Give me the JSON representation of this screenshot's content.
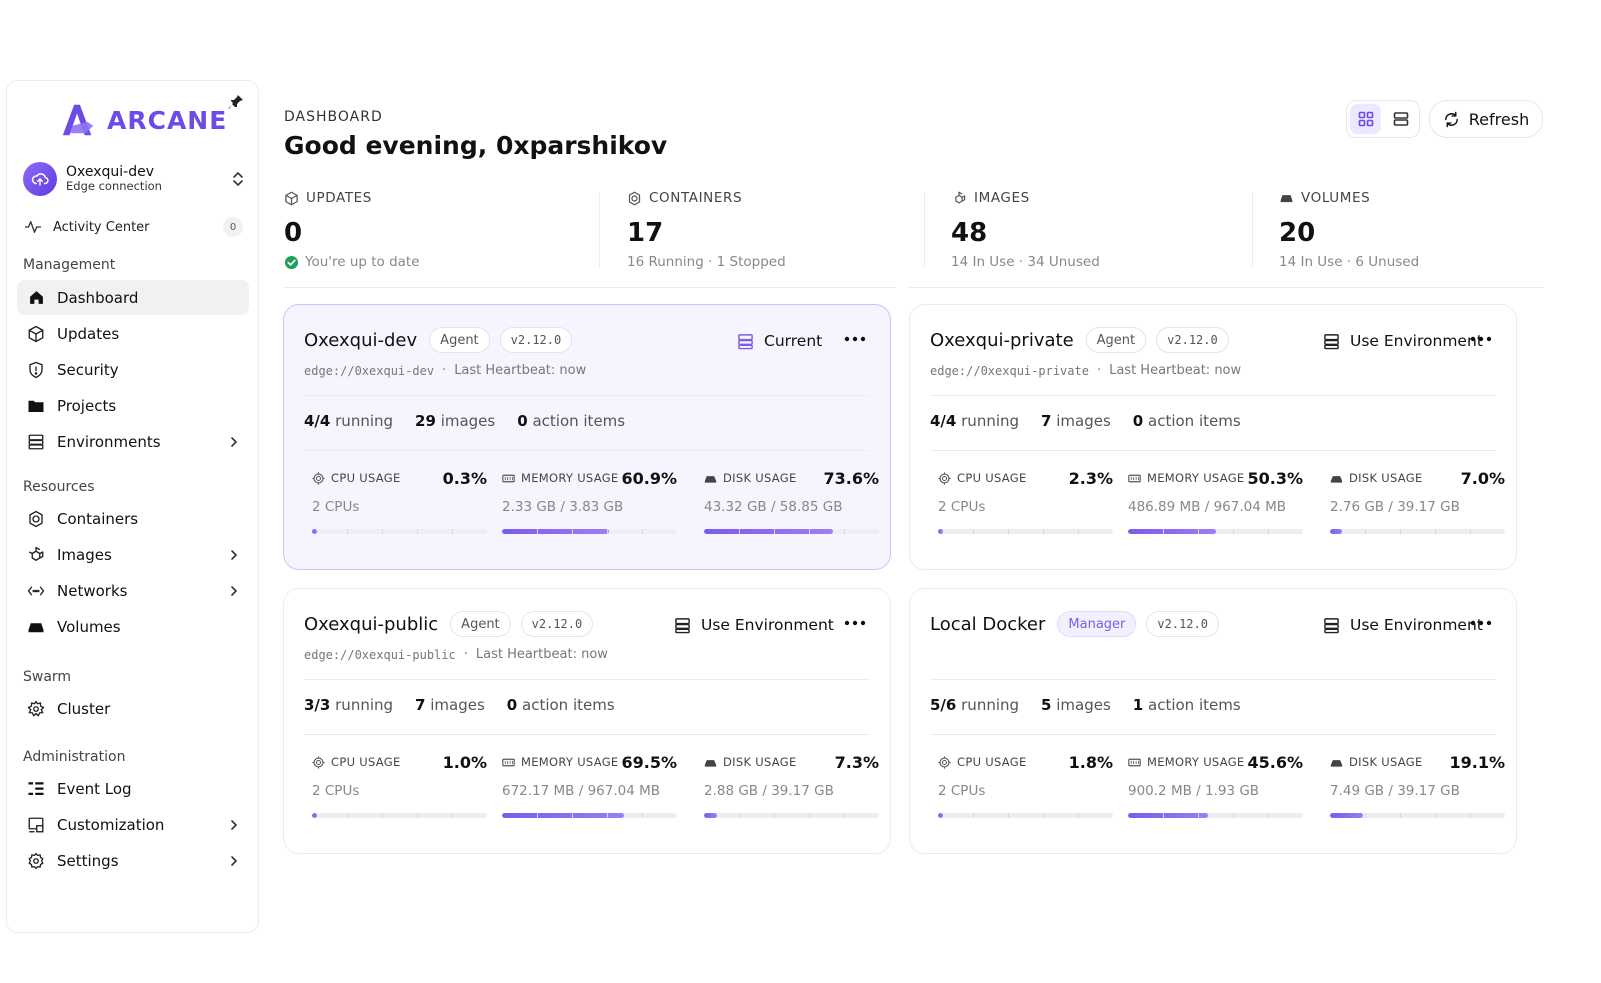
{
  "brand": {
    "name": "ARCANE",
    "accent": "#6d4be8"
  },
  "sidebar": {
    "env": {
      "name": "Oxexqui-dev",
      "subtitle": "Edge connection"
    },
    "activity": {
      "label": "Activity Center",
      "count": "0"
    },
    "sections": {
      "management": "Management",
      "resources": "Resources",
      "swarm": "Swarm",
      "administration": "Administration"
    },
    "items": {
      "dashboard": "Dashboard",
      "updates": "Updates",
      "security": "Security",
      "projects": "Projects",
      "environments": "Environments",
      "containers": "Containers",
      "images": "Images",
      "networks": "Networks",
      "volumes": "Volumes",
      "cluster": "Cluster",
      "event_log": "Event Log",
      "customization": "Customization",
      "settings": "Settings"
    }
  },
  "header": {
    "breadcrumb": "DASHBOARD",
    "greeting": "Good evening, 0xparshikov",
    "refresh_label": "Refresh"
  },
  "stats": {
    "updates": {
      "label": "UPDATES",
      "value": "0",
      "sub": "You're up to date"
    },
    "containers": {
      "label": "CONTAINERS",
      "value": "17",
      "sub": "16 Running · 1 Stopped"
    },
    "images": {
      "label": "IMAGES",
      "value": "48",
      "sub": "14 In Use · 34 Unused"
    },
    "volumes": {
      "label": "VOLUMES",
      "value": "20",
      "sub": "14 In Use · 6 Unused"
    }
  },
  "labels": {
    "cpu": "CPU USAGE",
    "memory": "MEMORY USAGE",
    "disk": "DISK USAGE",
    "running": "running",
    "images": "images",
    "action_items": "action items",
    "heartbeat": "Last Heartbeat: now"
  },
  "environments": [
    {
      "name": "Oxexqui-dev",
      "type": "Agent",
      "version": "v2.12.0",
      "url": "edge://0xexqui-dev",
      "action": "Current",
      "is_current": true,
      "running": "4/4",
      "images": "29",
      "action_items": "0",
      "cpu": {
        "value": "0.3%",
        "sub": "2 CPUs",
        "fraction": 0.003
      },
      "memory": {
        "value": "60.9%",
        "sub": "2.33 GB / 3.83 GB",
        "fraction": 0.609
      },
      "disk": {
        "value": "73.6%",
        "sub": "43.32 GB / 58.85 GB",
        "fraction": 0.736
      }
    },
    {
      "name": "Oxexqui-private",
      "type": "Agent",
      "version": "v2.12.0",
      "url": "edge://0xexqui-private",
      "action": "Use Environment",
      "is_current": false,
      "running": "4/4",
      "images": "7",
      "action_items": "0",
      "cpu": {
        "value": "2.3%",
        "sub": "2 CPUs",
        "fraction": 0.023
      },
      "memory": {
        "value": "50.3%",
        "sub": "486.89 MB / 967.04 MB",
        "fraction": 0.503
      },
      "disk": {
        "value": "7.0%",
        "sub": "2.76 GB / 39.17 GB",
        "fraction": 0.07
      }
    },
    {
      "name": "Oxexqui-public",
      "type": "Agent",
      "version": "v2.12.0",
      "url": "edge://0xexqui-public",
      "action": "Use Environment",
      "is_current": false,
      "running": "3/3",
      "images": "7",
      "action_items": "0",
      "cpu": {
        "value": "1.0%",
        "sub": "2 CPUs",
        "fraction": 0.01
      },
      "memory": {
        "value": "69.5%",
        "sub": "672.17 MB / 967.04 MB",
        "fraction": 0.695
      },
      "disk": {
        "value": "7.3%",
        "sub": "2.88 GB / 39.17 GB",
        "fraction": 0.073
      }
    },
    {
      "name": "Local Docker",
      "type": "Manager",
      "version": "v2.12.0",
      "url": "",
      "action": "Use Environment",
      "is_current": false,
      "running": "5/6",
      "images": "5",
      "action_items": "1",
      "cpu": {
        "value": "1.8%",
        "sub": "2 CPUs",
        "fraction": 0.018
      },
      "memory": {
        "value": "45.6%",
        "sub": "900.2 MB / 1.93 GB",
        "fraction": 0.456
      },
      "disk": {
        "value": "19.1%",
        "sub": "7.49 GB / 39.17 GB",
        "fraction": 0.191
      }
    }
  ]
}
